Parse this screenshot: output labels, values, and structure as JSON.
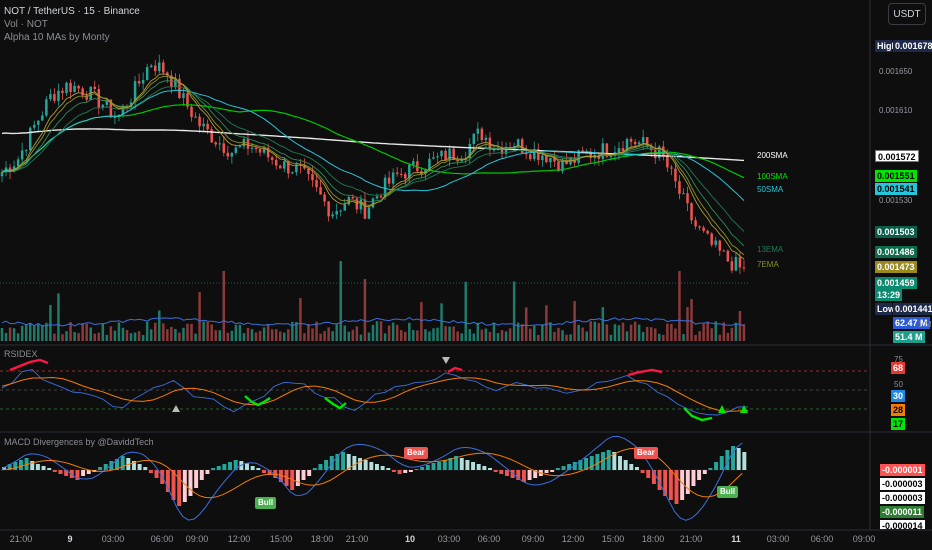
{
  "header": {
    "symbol_line": "NOT / TetherUS · 15 · Binance",
    "vol_line": "Vol · NOT",
    "indicator_line": "Alpha 10 MAs by Monty",
    "currency_button": "USDT"
  },
  "price_scale": {
    "ticks": [
      "0.001650",
      "0.001610",
      "0.001530"
    ],
    "high_label": "High",
    "high_value": "0.001678",
    "low_label": "Low",
    "low_value": "0.001441",
    "tags": [
      {
        "id": "sma200",
        "text": "0.001572",
        "bg": "#ffffff",
        "fg": "#000000"
      },
      {
        "id": "sma100",
        "text": "0.001551",
        "bg": "#00e600",
        "fg": "#000000"
      },
      {
        "id": "sma50",
        "text": "0.001541",
        "bg": "#26c6da",
        "fg": "#000000"
      },
      {
        "id": "ema13a",
        "text": "0.001503",
        "bg": "#0b5e4a",
        "fg": "#ffffff"
      },
      {
        "id": "ema13b",
        "text": "0.001486",
        "bg": "#0e6b4a",
        "fg": "#ffffff"
      },
      {
        "id": "ema7",
        "text": "0.001473",
        "bg": "#9a8a1c",
        "fg": "#ffffff"
      },
      {
        "id": "last",
        "text": "0.001459",
        "bg": "#0a8a6e",
        "fg": "#ffffff"
      },
      {
        "id": "countdown",
        "text": "13:29",
        "bg": "#0a8a6e",
        "fg": "#ffffff"
      },
      {
        "id": "vol1",
        "text": "62.47 M",
        "bg": "#2a5ad6",
        "fg": "#ffffff"
      },
      {
        "id": "vol2",
        "text": "51.4 M",
        "bg": "#1f9e8c",
        "fg": "#ffffff"
      }
    ],
    "vol_small": "1.M"
  },
  "ma_labels": [
    {
      "id": "lbl200",
      "text": "200SMA",
      "color": "#ffffff"
    },
    {
      "id": "lbl100",
      "text": "100SMA",
      "color": "#00e600"
    },
    {
      "id": "lbl50",
      "text": "50SMA",
      "color": "#26c6da"
    },
    {
      "id": "lbl13",
      "text": "13EMA",
      "color": "#1f7a55"
    },
    {
      "id": "lbl7",
      "text": "7EMA",
      "color": "#8a8f2a"
    }
  ],
  "rsi_pane": {
    "title": "RSIDEX",
    "levels": [
      "75",
      "50",
      "25"
    ],
    "tags": [
      {
        "text": "68",
        "bg": "#e53935",
        "fg": "#ffffff"
      },
      {
        "text": "30",
        "bg": "#1e88e5",
        "fg": "#ffffff"
      },
      {
        "text": "28",
        "bg": "#f57c00",
        "fg": "#000000"
      },
      {
        "text": "17",
        "bg": "#00e600",
        "fg": "#000000"
      }
    ]
  },
  "macd_pane": {
    "title": "MACD Divergences by @DaviddTech",
    "tags": [
      {
        "text": "-0.000001",
        "bg": "#ff5252",
        "fg": "#ffffff"
      },
      {
        "text": "-0.000003",
        "bg": "#ffffff",
        "fg": "#000000"
      },
      {
        "text": "-0.000003",
        "bg": "#ffffff",
        "fg": "#000000"
      },
      {
        "text": "-0.000011",
        "bg": "#2e7d32",
        "fg": "#ffffff"
      },
      {
        "text": "-0.000014",
        "bg": "#ffffff",
        "fg": "#000000"
      }
    ],
    "annotations": [
      {
        "text": "Bear",
        "type": "bear"
      },
      {
        "text": "Bear",
        "type": "bear"
      },
      {
        "text": "Bull",
        "type": "bull"
      },
      {
        "text": "Bull",
        "type": "bull"
      }
    ]
  },
  "time_axis": [
    "21:00",
    "9",
    "03:00",
    "06:00",
    "09:00",
    "12:00",
    "15:00",
    "18:00",
    "21:00",
    "10",
    "03:00",
    "06:00",
    "09:00",
    "12:00",
    "15:00",
    "18:00",
    "21:00",
    "11",
    "03:00",
    "06:00",
    "09:00"
  ],
  "chart_data": {
    "type": "candlestick",
    "close_path": [
      0.001558,
      0.001572,
      0.001605,
      0.001635,
      0.001645,
      0.00164,
      0.001628,
      0.001612,
      0.001638,
      0.001668,
      0.001658,
      0.00163,
      0.001605,
      0.00159,
      0.001578,
      0.001585,
      0.001575,
      0.001565,
      0.00156,
      0.00154,
      0.001518,
      0.00153,
      0.00152,
      0.00154,
      0.001555,
      0.001562,
      0.001568,
      0.001575,
      0.001578,
      0.001598,
      0.001582,
      0.001588,
      0.00158,
      0.001575,
      0.001565,
      0.001572,
      0.001578,
      0.001582,
      0.00159,
      0.001585,
      0.001575,
      0.00154,
      0.001505,
      0.001485,
      0.00147,
      0.001459
    ],
    "moving_averages": [
      "200SMA",
      "100SMA",
      "50SMA",
      "13EMA",
      "7EMA"
    ],
    "colors": {
      "up": "#26a69a",
      "down": "#ef5350",
      "sma200": "#ffffff",
      "sma100": "#00e600",
      "sma50": "#26c6da"
    }
  }
}
